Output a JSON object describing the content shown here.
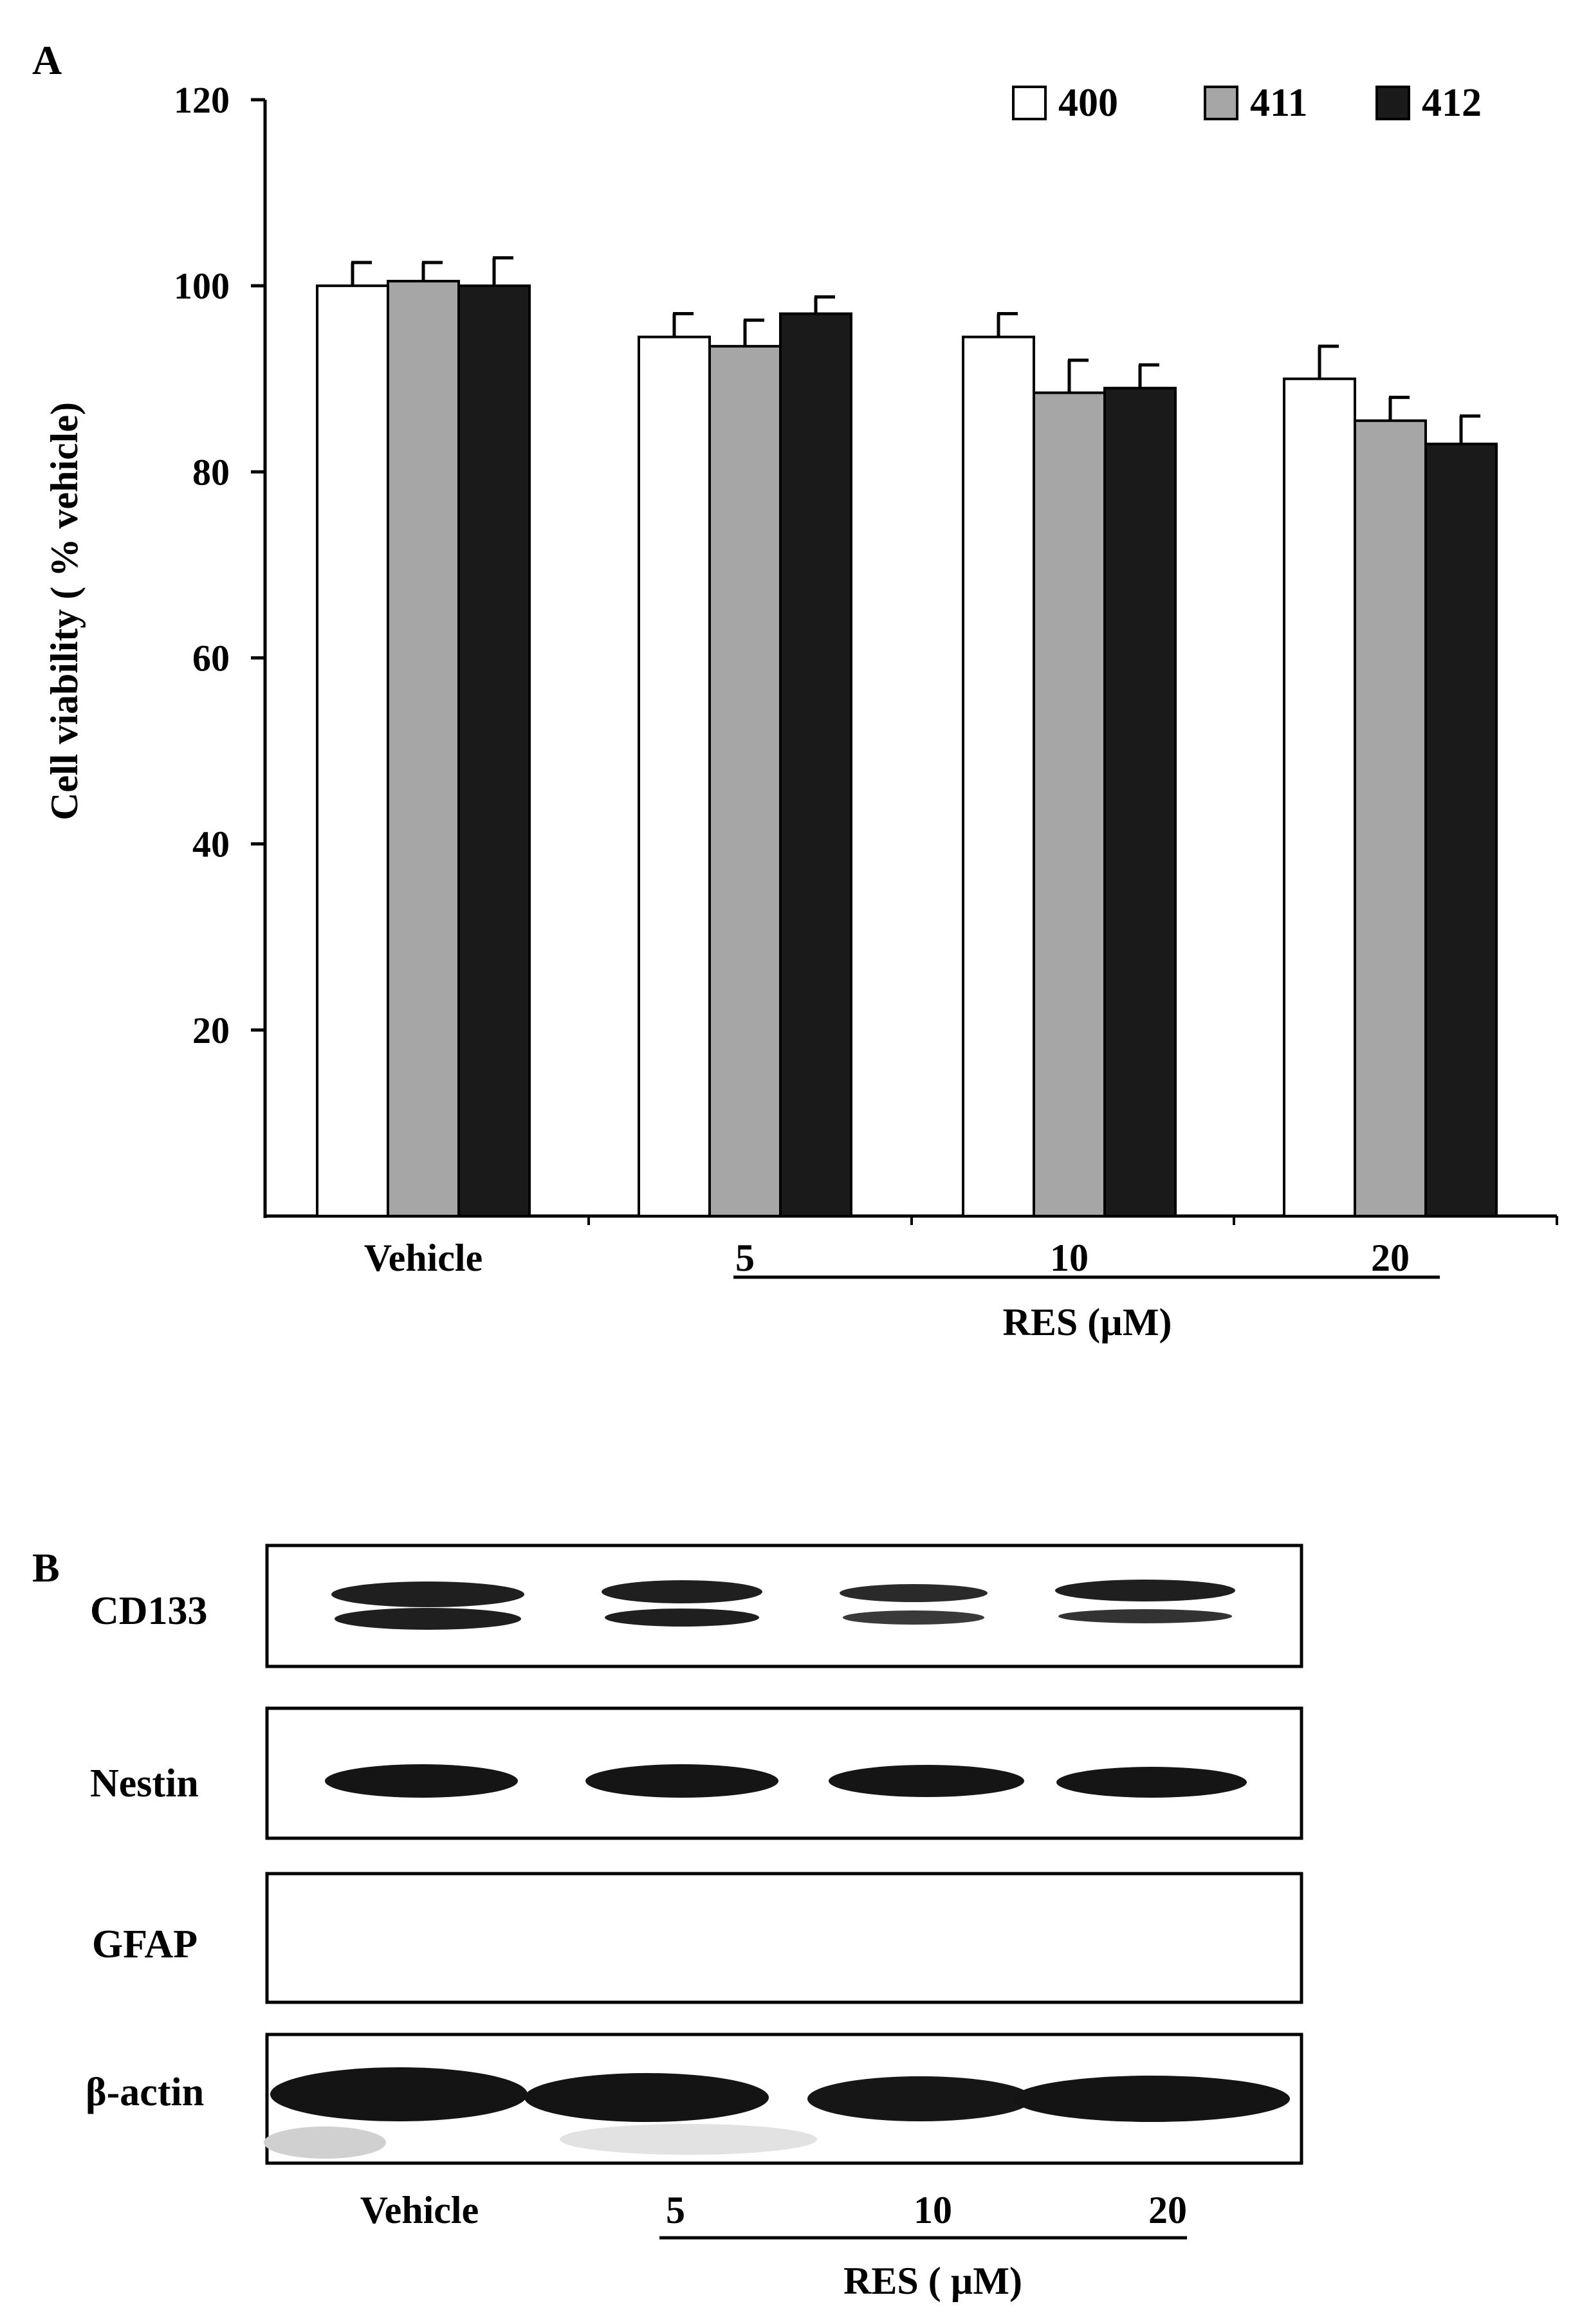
{
  "panel_a": {
    "letter": "A",
    "chart_data": {
      "type": "bar",
      "categories": [
        "Vehicle",
        "5",
        "10",
        "20"
      ],
      "series": [
        {
          "name": "400",
          "values": [
            100,
            94.5,
            94.5,
            90
          ],
          "errors": [
            2.5,
            2.5,
            2.5,
            3.5
          ],
          "color": "#ffffff"
        },
        {
          "name": "411",
          "values": [
            100.5,
            93.5,
            88.5,
            85.5
          ],
          "errors": [
            2,
            2.8,
            3.5,
            2.5
          ],
          "color": "#a6a6a6"
        },
        {
          "name": "412",
          "values": [
            100,
            97,
            89,
            83
          ],
          "errors": [
            3,
            1.8,
            2.5,
            3
          ],
          "color": "#1a1a1a"
        }
      ],
      "ylabel": "Cell viability ( % vehicle)",
      "xgroup_label": "RES (µM)",
      "yticks": [
        20,
        40,
        60,
        80,
        100,
        120
      ],
      "ylim": [
        0,
        120
      ],
      "legend_position": "top-right",
      "grid": false
    }
  },
  "panel_b": {
    "letter": "B",
    "rows": [
      "CD133",
      "Nestin",
      "GFAP",
      "β-actin"
    ],
    "lanes": [
      "Vehicle",
      "5",
      "10",
      "20"
    ],
    "group_label": "RES ( µM)"
  }
}
